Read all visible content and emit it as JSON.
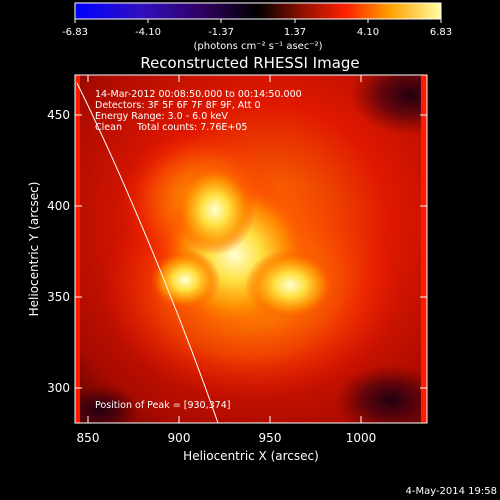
{
  "colorbar": {
    "ticks": [
      "-6.83",
      "-4.10",
      "-1.37",
      "1.37",
      "4.10",
      "6.83"
    ],
    "unit_label": "(photons cm⁻² s⁻¹ asec⁻²)"
  },
  "title": "Reconstructed RHESSI Image",
  "info": {
    "line1": "14-Mar-2012 00:08:50.000 to 00:14:50.000",
    "line2": "Detectors: 3F 5F 6F 7F 8F 9F, Att 0",
    "line3": "Energy Range: 3.0 - 6.0 keV",
    "line4": "Clean     Total counts: 7.76E+05"
  },
  "peak": "Position of Peak = [930,374]",
  "axes": {
    "xlabel": "Heliocentric X (arcsec)",
    "ylabel": "Heliocentric Y (arcsec)",
    "xticks": [
      "850",
      "900",
      "950",
      "1000"
    ],
    "yticks": [
      "300",
      "350",
      "400",
      "450"
    ]
  },
  "footer_date": "4-May-2014 19:58",
  "colors": {
    "low": "#000000",
    "mid": "#ff2000",
    "high": "#ffffa0",
    "limb": "#ffffff"
  }
}
